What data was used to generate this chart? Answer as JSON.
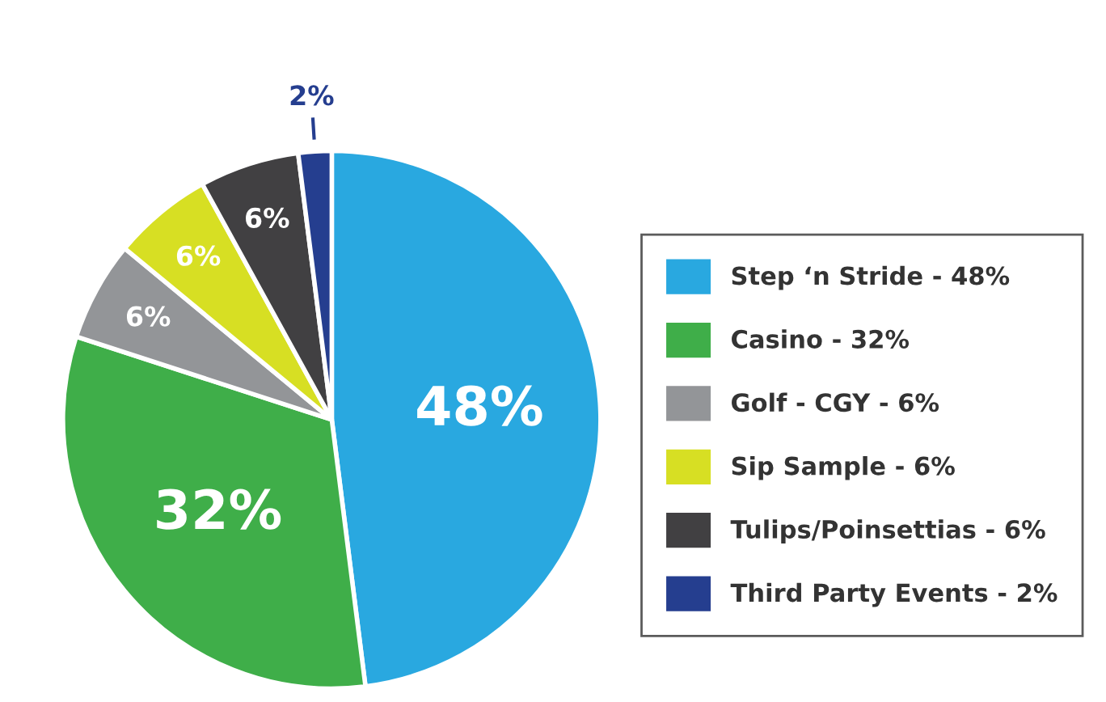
{
  "chart_data": {
    "type": "pie",
    "categories": [
      "Step ‘n Stride - 48%",
      "Casino - 32%",
      "Golf - CGY - 6%",
      "Sip Sample - 6%",
      "Tulips/Poinsettias - 6%",
      "Third Party Events - 2%"
    ],
    "values": [
      48,
      32,
      6,
      6,
      6,
      2
    ],
    "value_labels": [
      "48%",
      "32%",
      "6%",
      "6%",
      "6%",
      "2%"
    ],
    "colors": [
      "#29a8e0",
      "#3fae49",
      "#939598",
      "#d7df23",
      "#414042",
      "#253e8f"
    ],
    "legend": "right"
  }
}
